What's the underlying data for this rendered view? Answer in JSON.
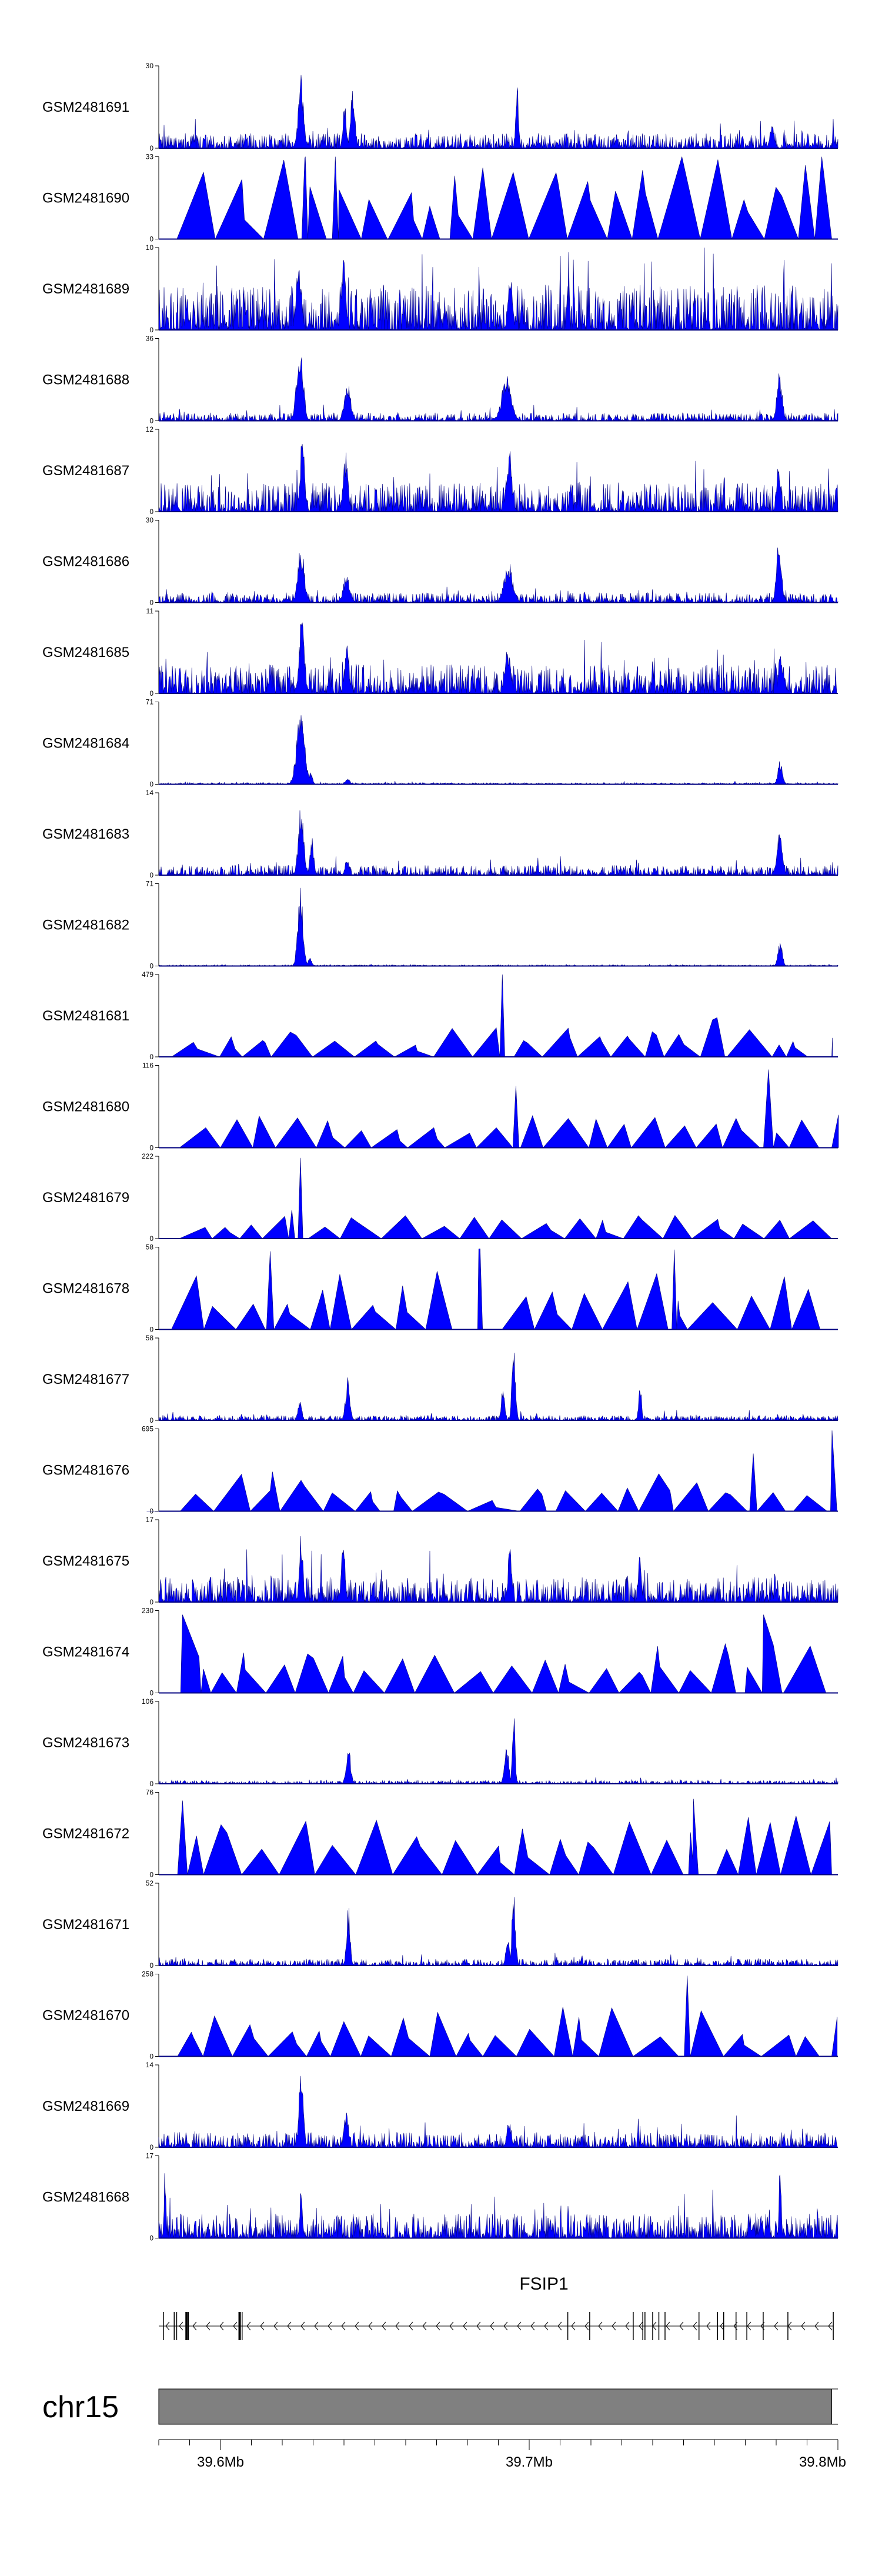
{
  "chart_data": {
    "type": "area",
    "colors": {
      "signal": "#0000ff",
      "signal_outline": "#00007f",
      "ideogram": "#808080",
      "gene": "#000000",
      "axis": "#000000"
    },
    "x_range_mb": [
      39.58,
      39.8
    ],
    "tracks": [
      {
        "name": "GSM2481691",
        "ymax": "30",
        "style": "dense",
        "seed": 11,
        "base": 0.18,
        "peaks": [
          [
            39.6261,
            0.9,
            0.0012
          ],
          [
            39.6402,
            0.55,
            0.0008
          ],
          [
            39.6428,
            0.75,
            0.001
          ],
          [
            39.6961,
            0.85,
            0.0006
          ],
          [
            39.7787,
            0.3,
            0.001
          ]
        ]
      },
      {
        "name": "GSM2481690",
        "ymax": "33",
        "style": "triangles",
        "seed": 21,
        "base": 0.85,
        "peaks": [
          [
            39.6273,
            0.98,
            0.0005
          ],
          [
            39.6372,
            1.0,
            0.0005
          ],
          [
            39.6543,
            0.0,
            0.01
          ]
        ]
      },
      {
        "name": "GSM2481689",
        "ymax": "10",
        "style": "dense",
        "seed": 31,
        "base": 0.55,
        "peaks": [
          [
            39.6253,
            0.95,
            0.001
          ],
          [
            39.6398,
            0.9,
            0.001
          ],
          [
            39.6939,
            0.7,
            0.001
          ]
        ]
      },
      {
        "name": "GSM2481688",
        "ymax": "36",
        "style": "dense",
        "seed": 41,
        "base": 0.1,
        "peaks": [
          [
            39.6257,
            0.95,
            0.0015
          ],
          [
            39.6412,
            0.45,
            0.0015
          ],
          [
            39.6927,
            0.55,
            0.0022
          ],
          [
            39.7811,
            0.6,
            0.0012
          ]
        ]
      },
      {
        "name": "GSM2481687",
        "ymax": "12",
        "style": "dense",
        "seed": 51,
        "base": 0.35,
        "peaks": [
          [
            39.6265,
            0.95,
            0.001
          ],
          [
            39.6405,
            0.75,
            0.001
          ],
          [
            39.6935,
            0.8,
            0.0012
          ],
          [
            39.7807,
            0.7,
            0.0008
          ]
        ]
      },
      {
        "name": "GSM2481686",
        "ymax": "30",
        "style": "dense",
        "seed": 61,
        "base": 0.12,
        "peaks": [
          [
            39.6261,
            0.7,
            0.0015
          ],
          [
            39.6408,
            0.35,
            0.0015
          ],
          [
            39.6933,
            0.5,
            0.002
          ],
          [
            39.7809,
            0.95,
            0.001
          ]
        ]
      },
      {
        "name": "GSM2481685",
        "ymax": "11",
        "style": "dense",
        "seed": 71,
        "base": 0.35,
        "peaks": [
          [
            39.6263,
            0.95,
            0.0012
          ],
          [
            39.641,
            0.6,
            0.001
          ],
          [
            39.693,
            0.6,
            0.0012
          ],
          [
            39.7813,
            0.6,
            0.0008
          ]
        ]
      },
      {
        "name": "GSM2481684",
        "ymax": "71",
        "style": "dense",
        "seed": 81,
        "base": 0.02,
        "peaks": [
          [
            39.6259,
            0.95,
            0.0018
          ],
          [
            39.6292,
            0.15,
            0.0008
          ],
          [
            39.6412,
            0.08,
            0.001
          ],
          [
            39.7813,
            0.3,
            0.001
          ]
        ]
      },
      {
        "name": "GSM2481683",
        "ymax": "14",
        "style": "dense",
        "seed": 91,
        "base": 0.12,
        "peaks": [
          [
            39.6261,
            0.9,
            0.0012
          ],
          [
            39.6296,
            0.5,
            0.0008
          ],
          [
            39.641,
            0.25,
            0.0008
          ],
          [
            39.7811,
            0.6,
            0.0012
          ]
        ]
      },
      {
        "name": "GSM2481682",
        "ymax": "71",
        "style": "dense",
        "seed": 101,
        "base": 0.015,
        "peaks": [
          [
            39.6259,
            0.95,
            0.0012
          ],
          [
            39.629,
            0.1,
            0.0008
          ],
          [
            39.7813,
            0.3,
            0.001
          ]
        ]
      },
      {
        "name": "GSM2481681",
        "ymax": "479",
        "style": "triangles",
        "seed": 111,
        "base": 0.3,
        "peaks": [
          [
            39.6913,
            1.0,
            0.0004
          ],
          [
            39.7594,
            0.45,
            0.002
          ]
        ]
      },
      {
        "name": "GSM2481680",
        "ymax": "116",
        "style": "triangles",
        "seed": 121,
        "base": 0.35,
        "peaks": [
          [
            39.6957,
            0.75,
            0.0005
          ],
          [
            39.7775,
            0.95,
            0.0008
          ]
        ]
      },
      {
        "name": "GSM2481679",
        "ymax": "222",
        "style": "triangles",
        "seed": 131,
        "base": 0.25,
        "peaks": [
          [
            39.6259,
            0.98,
            0.0004
          ],
          [
            39.6231,
            0.35,
            0.0005
          ]
        ]
      },
      {
        "name": "GSM2481678",
        "ymax": "58",
        "style": "triangles",
        "seed": 141,
        "base": 0.6,
        "peaks": [
          [
            39.6161,
            0.95,
            0.0006
          ],
          [
            39.6841,
            0.98,
            0.0004
          ],
          [
            39.747,
            0.97,
            0.0004
          ]
        ]
      },
      {
        "name": "GSM2481677",
        "ymax": "58",
        "style": "dense",
        "seed": 151,
        "base": 0.06,
        "peaks": [
          [
            39.6257,
            0.3,
            0.0008
          ],
          [
            39.6412,
            0.55,
            0.001
          ],
          [
            39.6915,
            0.4,
            0.0008
          ],
          [
            39.695,
            0.95,
            0.0008
          ],
          [
            39.7359,
            0.5,
            0.0006
          ]
        ]
      },
      {
        "name": "GSM2481676",
        "ymax": "695",
        "style": "triangles",
        "seed": 161,
        "base": 0.25,
        "peaks": [
          [
            39.7726,
            0.7,
            0.0006
          ],
          [
            39.7981,
            0.98,
            0.0008
          ],
          [
            39.6161,
            0.25,
            0.02
          ],
          [
            39.7456,
            0.25,
            0.02
          ]
        ]
      },
      {
        "name": "GSM2481675",
        "ymax": "17",
        "style": "dense",
        "seed": 171,
        "base": 0.3,
        "peaks": [
          [
            39.6261,
            0.85,
            0.0008
          ],
          [
            39.6398,
            0.95,
            0.0008
          ],
          [
            39.6937,
            0.75,
            0.0008
          ],
          [
            39.7358,
            0.7,
            0.0006
          ]
        ]
      },
      {
        "name": "GSM2481674",
        "ymax": "230",
        "style": "triangles",
        "seed": 181,
        "base": 0.5,
        "peaks": [
          [
            39.5877,
            0.95,
            0.003
          ],
          [
            39.7759,
            0.95,
            0.003
          ]
        ]
      },
      {
        "name": "GSM2481673",
        "ymax": "106",
        "style": "dense",
        "seed": 191,
        "base": 0.04,
        "peaks": [
          [
            39.6414,
            0.5,
            0.001
          ],
          [
            39.6927,
            0.45,
            0.001
          ],
          [
            39.695,
            0.98,
            0.0006
          ]
        ]
      },
      {
        "name": "GSM2481672",
        "ymax": "76",
        "style": "triangles",
        "seed": 201,
        "base": 0.6,
        "peaks": [
          [
            39.5877,
            0.9,
            0.0008
          ],
          [
            39.7532,
            0.92,
            0.0008
          ]
        ]
      },
      {
        "name": "GSM2481671",
        "ymax": "52",
        "style": "dense",
        "seed": 211,
        "base": 0.08,
        "peaks": [
          [
            39.6414,
            0.75,
            0.0008
          ],
          [
            39.695,
            0.98,
            0.0008
          ],
          [
            39.693,
            0.4,
            0.0008
          ]
        ]
      },
      {
        "name": "GSM2481670",
        "ymax": "258",
        "style": "triangles",
        "seed": 221,
        "base": 0.5,
        "peaks": [
          [
            39.7512,
            0.98,
            0.0005
          ]
        ]
      },
      {
        "name": "GSM2481669",
        "ymax": "14",
        "style": "dense",
        "seed": 231,
        "base": 0.18,
        "peaks": [
          [
            39.6261,
            0.95,
            0.001
          ],
          [
            39.6408,
            0.45,
            0.001
          ],
          [
            39.6935,
            0.35,
            0.001
          ]
        ]
      },
      {
        "name": "GSM2481668",
        "ymax": "17",
        "style": "dense",
        "seed": 241,
        "base": 0.3,
        "peaks": [
          [
            39.582,
            0.95,
            0.0004
          ],
          [
            39.6261,
            0.6,
            0.0006
          ],
          [
            39.7813,
            0.95,
            0.0005
          ]
        ]
      }
    ],
    "gene": {
      "name": "FSIP1",
      "start_mb": 39.58,
      "end_mb": 39.7985,
      "strand": "-",
      "exons_mb": [
        39.5815,
        39.585,
        39.5858,
        39.589,
        39.5896,
        39.6062,
        39.607,
        39.7125,
        39.7196,
        39.7337,
        39.7368,
        39.7375,
        39.74,
        39.742,
        39.744,
        39.755,
        39.761,
        39.763,
        39.767,
        39.7705,
        39.7758,
        39.7838,
        39.7985
      ]
    },
    "ideogram": {
      "chrom": "chr15",
      "start_mb": 39.58,
      "end_mb": 39.798,
      "axis_end_mb": 39.8,
      "minor_ticks_mb": [
        39.58,
        39.59,
        39.6,
        39.61,
        39.62,
        39.63,
        39.64,
        39.65,
        39.66,
        39.67,
        39.68,
        39.69,
        39.7,
        39.71,
        39.72,
        39.73,
        39.74,
        39.75,
        39.76,
        39.77,
        39.78,
        39.79,
        39.8
      ],
      "major_ticks": [
        {
          "mb": 39.6,
          "label": "39.6Mb"
        },
        {
          "mb": 39.7,
          "label": "39.7Mb"
        },
        {
          "mb": 39.8,
          "label": "39.8Mb"
        }
      ]
    }
  }
}
